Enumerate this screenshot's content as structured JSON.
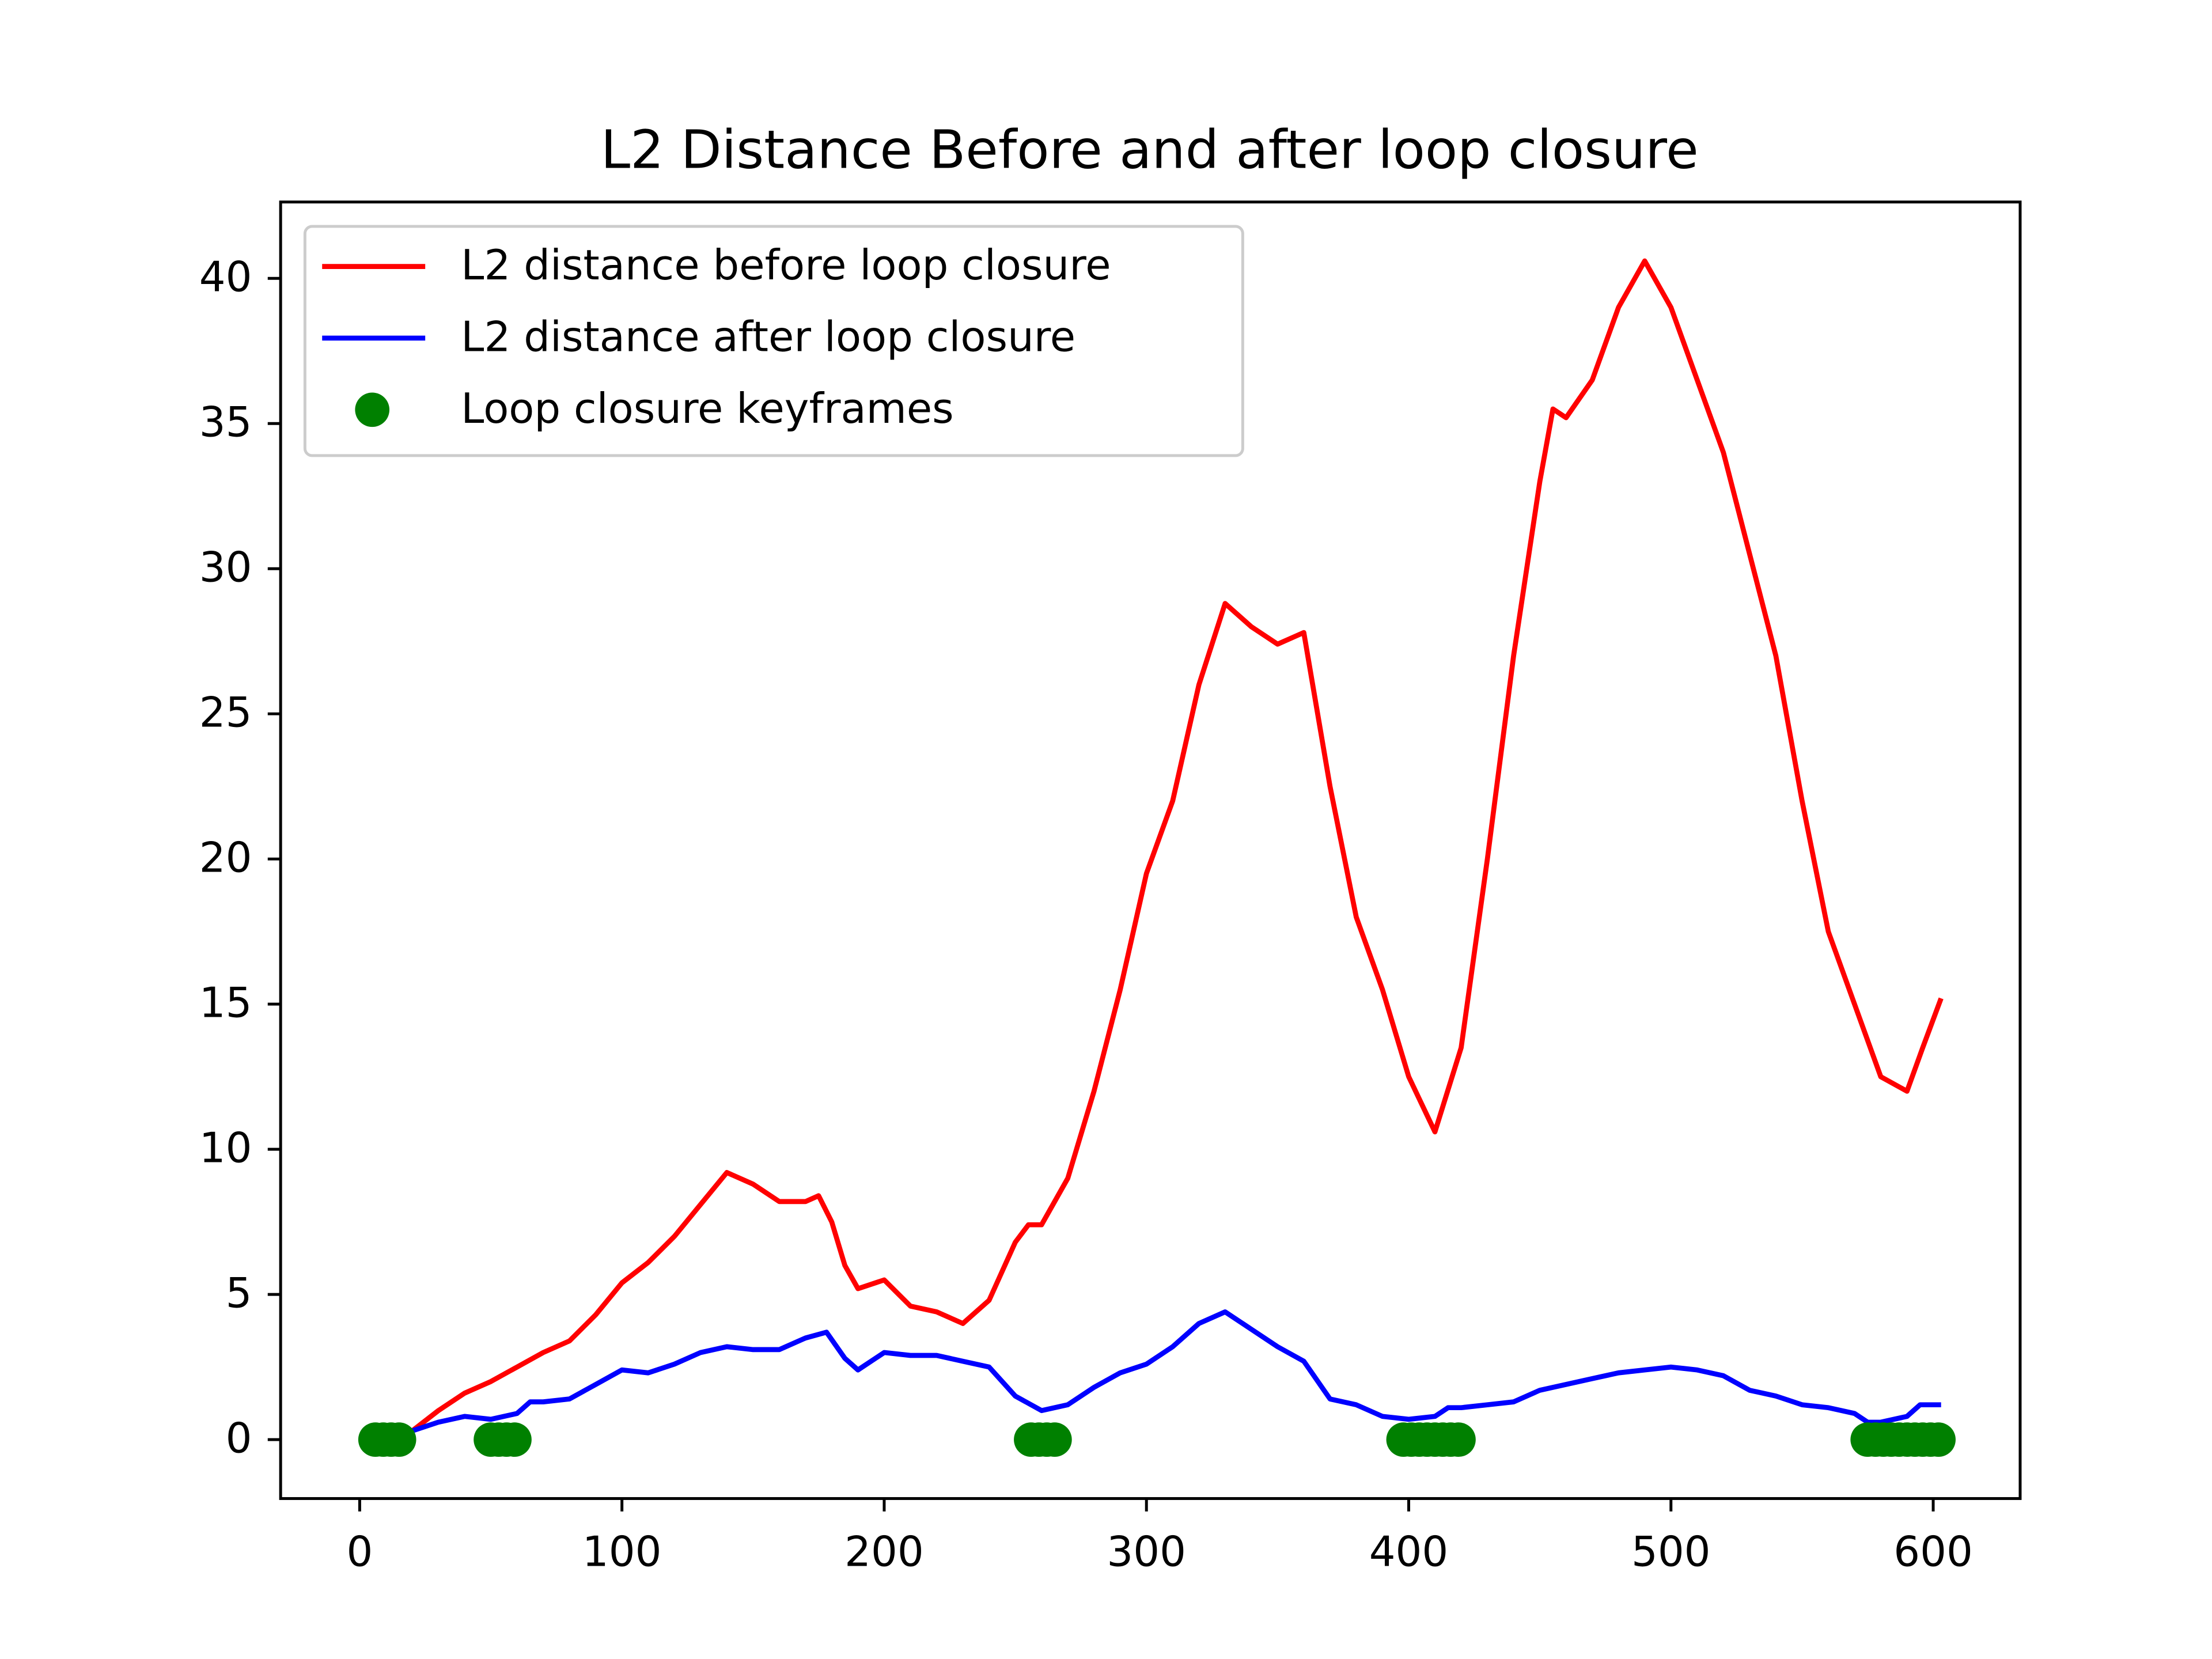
{
  "chart_data": {
    "type": "line",
    "title": "L2 Distance Before and after loop closure",
    "xlim": [
      -30.15,
      633.15
    ],
    "ylim": [
      -2.03,
      42.63
    ],
    "xticks": [
      0,
      100,
      200,
      300,
      400,
      500,
      600
    ],
    "yticks": [
      0,
      5,
      10,
      15,
      20,
      25,
      30,
      35,
      40
    ],
    "grid": false,
    "legend": "upper left",
    "series": [
      {
        "name": "L2 distance before loop closure",
        "color": "#ff0000",
        "kind": "line",
        "x": [
          0,
          10,
          20,
          30,
          40,
          50,
          60,
          70,
          80,
          90,
          100,
          110,
          120,
          130,
          140,
          150,
          160,
          170,
          175,
          180,
          185,
          190,
          200,
          210,
          220,
          230,
          240,
          250,
          255,
          260,
          270,
          280,
          290,
          300,
          310,
          320,
          330,
          340,
          350,
          360,
          370,
          380,
          390,
          400,
          410,
          420,
          430,
          440,
          450,
          455,
          460,
          470,
          480,
          490,
          500,
          510,
          520,
          530,
          540,
          550,
          560,
          570,
          580,
          590,
          596,
          603
        ],
        "values": [
          0,
          0.1,
          0.3,
          1.0,
          1.6,
          2.0,
          2.5,
          3.0,
          3.4,
          4.3,
          5.4,
          6.1,
          7.0,
          8.1,
          9.2,
          8.8,
          8.2,
          8.2,
          8.4,
          7.5,
          6.0,
          5.2,
          5.5,
          4.6,
          4.4,
          4.0,
          4.8,
          6.8,
          7.4,
          7.4,
          9.0,
          12.0,
          15.5,
          19.5,
          22.0,
          26.0,
          28.8,
          28.0,
          27.4,
          27.8,
          22.5,
          18.0,
          15.5,
          12.5,
          10.6,
          13.5,
          20.0,
          27.0,
          33.0,
          35.5,
          35.2,
          36.5,
          39.0,
          40.6,
          39.0,
          36.5,
          34.0,
          30.5,
          27.0,
          22.0,
          17.5,
          15.0,
          12.5,
          12.0,
          13.5,
          15.2
        ]
      },
      {
        "name": "L2 distance after loop closure",
        "color": "#0000ff",
        "kind": "line",
        "x": [
          0,
          10,
          20,
          30,
          40,
          50,
          60,
          65,
          70,
          80,
          90,
          100,
          110,
          120,
          130,
          140,
          150,
          160,
          170,
          178,
          185,
          190,
          200,
          210,
          220,
          230,
          240,
          250,
          260,
          270,
          280,
          290,
          300,
          310,
          320,
          330,
          340,
          350,
          360,
          370,
          380,
          390,
          400,
          410,
          415,
          420,
          430,
          440,
          450,
          460,
          470,
          480,
          490,
          500,
          510,
          520,
          530,
          540,
          550,
          560,
          570,
          575,
          580,
          590,
          595,
          603
        ],
        "values": [
          0,
          0.2,
          0.3,
          0.6,
          0.8,
          0.7,
          0.9,
          1.3,
          1.3,
          1.4,
          1.9,
          2.4,
          2.3,
          2.6,
          3.0,
          3.2,
          3.1,
          3.1,
          3.5,
          3.7,
          2.8,
          2.4,
          3.0,
          2.9,
          2.9,
          2.7,
          2.5,
          1.5,
          1.0,
          1.2,
          1.8,
          2.3,
          2.6,
          3.2,
          4.0,
          4.4,
          3.8,
          3.2,
          2.7,
          1.4,
          1.2,
          0.8,
          0.7,
          0.8,
          1.1,
          1.1,
          1.2,
          1.3,
          1.7,
          1.9,
          2.1,
          2.3,
          2.4,
          2.5,
          2.4,
          2.2,
          1.7,
          1.5,
          1.2,
          1.1,
          0.9,
          0.6,
          0.6,
          0.8,
          1.2,
          1.2
        ]
      },
      {
        "name": "Loop closure keyframes",
        "color": "#008000",
        "kind": "scatter",
        "x": [
          6,
          9,
          12,
          15,
          50,
          53,
          56,
          59,
          256,
          259,
          262,
          265,
          398,
          401,
          404,
          407,
          410,
          413,
          416,
          419,
          575,
          578,
          581,
          584,
          587,
          590,
          593,
          596,
          599,
          602
        ],
        "values": [
          0,
          0,
          0,
          0,
          0,
          0,
          0,
          0,
          0,
          0,
          0,
          0,
          0,
          0,
          0,
          0,
          0,
          0,
          0,
          0,
          0,
          0,
          0,
          0,
          0,
          0,
          0,
          0,
          0,
          0
        ]
      }
    ]
  }
}
